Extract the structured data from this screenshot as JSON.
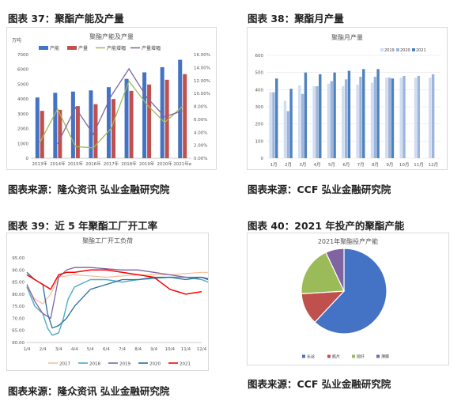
{
  "panels": [
    {
      "title": "图表 37：聚酯产能及产量",
      "source": "图表来源：隆众资讯 弘业金融研究院"
    },
    {
      "title": "图表 38：聚酯月产量",
      "source": "图表来源：CCF 弘业金融研究院"
    },
    {
      "title": "图表 39：近 5 年聚酯工厂开工率",
      "source": "图表来源：隆众资讯 弘业金融研究院"
    },
    {
      "title": "图表 40：2021 年投产的聚酯产能",
      "source": "图表来源：CCF 弘业金融研究院"
    }
  ],
  "colors": {
    "capacity": "#4472c4",
    "output": "#c0504d",
    "cap_growth": "#9bbb59",
    "out_growth": "#8064a2",
    "y2019": "#d0dcf0",
    "y2020": "#9cb5dc",
    "y2021": "#4f81bd",
    "r2017": "#f7bf9b",
    "r2018": "#4bacc6",
    "r2019": "#7f63a6",
    "r2020": "#2a6d9c",
    "r2021": "#ff0000",
    "pie": [
      "#4472c4",
      "#c0504d",
      "#9bbb59",
      "#8064a2"
    ]
  },
  "chart_data": [
    {
      "type": "bar",
      "title": "聚酯产能及产量",
      "ylabel": "万吨",
      "categories": [
        "2013年",
        "2014年",
        "2015年",
        "2016年",
        "2017年",
        "2018年",
        "2019年",
        "2020年",
        "2021年e"
      ],
      "ylim": [
        0,
        7000
      ],
      "yticks": [
        "0",
        "1000",
        "2000",
        "3000",
        "4000",
        "5000",
        "6000",
        "7000"
      ],
      "y2lim": [
        0,
        16
      ],
      "y2ticks": [
        "0.00%",
        "2.00%",
        "4.00%",
        "6.00%",
        "8.00%",
        "10.00%",
        "12.00%",
        "14.00%",
        "16.00%"
      ],
      "legend_position": "top",
      "series": [
        {
          "name": "产能",
          "values": [
            4100,
            4420,
            4500,
            4580,
            4800,
            5360,
            5800,
            6150,
            6650
          ]
        },
        {
          "name": "产量",
          "values": [
            3200,
            3270,
            3520,
            3650,
            4000,
            4550,
            4980,
            5300,
            5680
          ]
        },
        {
          "name": "产能增幅",
          "axis": "right",
          "values": [
            2.4,
            7.6,
            1.8,
            1.6,
            4.6,
            11.9,
            8.3,
            5.5,
            8.0
          ]
        },
        {
          "name": "产量增幅",
          "axis": "right",
          "values": [
            null,
            2.2,
            7.8,
            3.7,
            9.6,
            13.8,
            9.4,
            6.4,
            7.3
          ]
        }
      ]
    },
    {
      "type": "bar",
      "title": "聚酯月产量",
      "categories": [
        "1月",
        "2月",
        "3月",
        "4月",
        "5月",
        "6月",
        "7月",
        "8月",
        "9月",
        "10月",
        "11月",
        "12月"
      ],
      "ylim": [
        0,
        600
      ],
      "yticks": [
        "0",
        "100",
        "200",
        "300",
        "400",
        "500",
        "600"
      ],
      "legend_position": "top-right",
      "series": [
        {
          "name": "2019",
          "values": [
            385,
            335,
            425,
            420,
            435,
            420,
            430,
            440,
            470,
            470,
            470,
            470
          ]
        },
        {
          "name": "2020",
          "values": [
            385,
            275,
            375,
            420,
            450,
            460,
            475,
            475,
            470,
            480,
            480,
            490
          ]
        },
        {
          "name": "2021",
          "values": [
            465,
            405,
            500,
            490,
            500,
            510,
            520,
            520,
            465,
            null,
            null,
            null
          ]
        }
      ]
    },
    {
      "type": "line",
      "title": "聚酯工厂开工负荷",
      "categories": [
        "1/4",
        "2/4",
        "3/4",
        "4/4",
        "5/4",
        "6/4",
        "7/4",
        "8/4",
        "9/4",
        "10/4",
        "11/4",
        "12/4"
      ],
      "ylim": [
        60,
        95
      ],
      "yticks": [
        "60.00",
        "65.00",
        "70.00",
        "75.00",
        "80.00",
        "85.00",
        "90.00",
        "95.00"
      ],
      "legend_position": "bottom",
      "series": [
        {
          "name": "2017",
          "x": [
            0,
            0.5,
            1,
            1.5,
            2,
            2.5,
            3,
            4,
            5,
            6,
            7,
            8,
            9,
            10,
            11,
            11.8
          ],
          "y": [
            83,
            78,
            76,
            80,
            87,
            87.5,
            88,
            87.5,
            87,
            87.5,
            88,
            88,
            88,
            88.5,
            89,
            89
          ]
        },
        {
          "name": "2018",
          "x": [
            0,
            0.5,
            1,
            1.3,
            1.6,
            2,
            2.3,
            2.6,
            3,
            4,
            5,
            6,
            7,
            8,
            9,
            10,
            11,
            11.8
          ],
          "y": [
            83,
            75,
            72,
            66,
            63,
            64,
            70,
            78,
            83,
            86,
            86,
            85,
            86,
            86.5,
            87,
            87,
            86,
            84
          ]
        },
        {
          "name": "2019",
          "x": [
            0,
            0.5,
            1,
            1.5,
            2,
            2.5,
            3,
            4,
            5,
            6,
            7,
            8,
            9,
            10,
            11,
            11.8
          ],
          "y": [
            84,
            77,
            72,
            70,
            87,
            90,
            91,
            91,
            90.5,
            90,
            90,
            89,
            88,
            87,
            87,
            86
          ]
        },
        {
          "name": "2020",
          "x": [
            0,
            0.5,
            1,
            1.3,
            1.6,
            2,
            2.5,
            3,
            4,
            5,
            6,
            7,
            8,
            9,
            10,
            11,
            11.8
          ],
          "y": [
            89,
            86,
            84,
            72,
            66,
            67,
            70,
            75,
            82,
            84,
            86,
            86,
            87,
            87,
            86,
            87,
            85
          ]
        },
        {
          "name": "2021",
          "x": [
            0,
            0.5,
            1,
            1.5,
            2,
            2.5,
            3,
            4,
            5,
            6,
            7,
            8,
            9,
            10,
            10.5,
            11
          ],
          "y": [
            88,
            86,
            84,
            82,
            88,
            89,
            89,
            90,
            90,
            89,
            88,
            87,
            82,
            80,
            80.5,
            81
          ]
        }
      ]
    },
    {
      "type": "pie",
      "title": "2021年聚酯投产产能",
      "legend_position": "bottom",
      "labels": [
        "长丝",
        "瓶片",
        "短纤",
        "薄膜"
      ],
      "values": [
        62,
        12,
        19,
        7
      ]
    }
  ]
}
